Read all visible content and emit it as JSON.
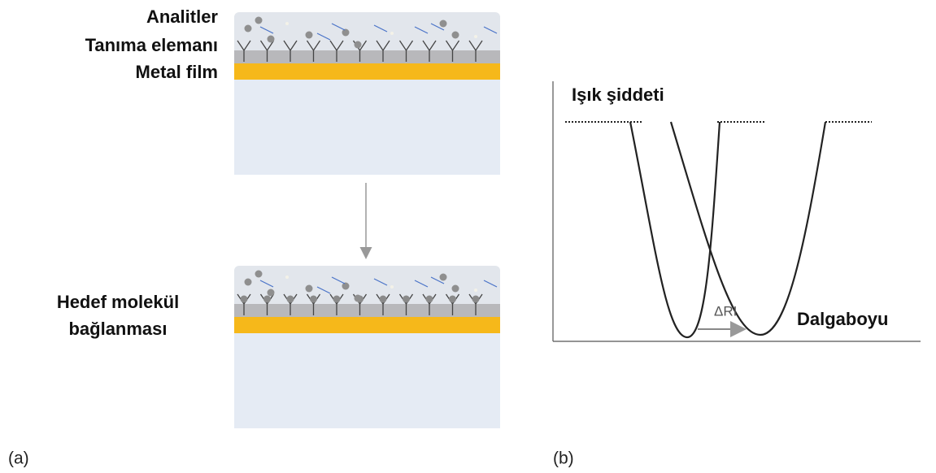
{
  "panel_a": {
    "labels": {
      "analytes": "Analitler",
      "recognition": "Tanıma elemanı",
      "metal": "Metal film"
    },
    "binding": [
      "Hedef molekül",
      "bağlanması"
    ],
    "tag": "(a)"
  },
  "panel_b": {
    "y_label": "Işık şiddeti",
    "x_label": "Dalgaboyu",
    "shift": "ΔRI",
    "tag": "(b)"
  }
}
